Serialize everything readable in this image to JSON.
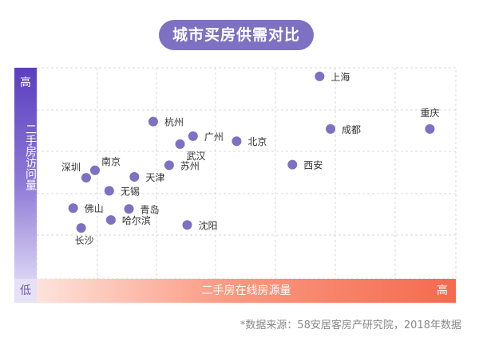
{
  "title": "城市买房供需对比",
  "axes": {
    "y_high": "高",
    "y_label": "二手房访问量",
    "y_low": "低",
    "x_label": "二手房在线房源量",
    "x_high": "高"
  },
  "source": "*数据来源：58安居客房产研究院，2018年数据",
  "colors": {
    "point": "#7e70c2",
    "grid": "#d8d8d8",
    "label": "#333333"
  },
  "chart_data": {
    "type": "scatter",
    "title": "城市买房供需对比",
    "xlabel": "二手房在线房源量",
    "ylabel": "二手房访问量",
    "xlim": [
      0,
      100
    ],
    "ylim": [
      0,
      100
    ],
    "grid": true,
    "points": [
      {
        "label": "上海",
        "x": 67.5,
        "y": 95.9,
        "label_pos": "right"
      },
      {
        "label": "重庆",
        "x": 93.8,
        "y": 71.0,
        "label_pos": "above"
      },
      {
        "label": "成都",
        "x": 70.1,
        "y": 71.0,
        "label_pos": "right"
      },
      {
        "label": "杭州",
        "x": 27.8,
        "y": 74.5,
        "label_pos": "right"
      },
      {
        "label": "广州",
        "x": 37.3,
        "y": 67.6,
        "label_pos": "right"
      },
      {
        "label": "武汉",
        "x": 34.2,
        "y": 63.8,
        "label_pos": "below-right"
      },
      {
        "label": "北京",
        "x": 47.7,
        "y": 65.2,
        "label_pos": "right"
      },
      {
        "label": "西安",
        "x": 61.0,
        "y": 54.1,
        "label_pos": "right"
      },
      {
        "label": "苏州",
        "x": 31.6,
        "y": 53.8,
        "label_pos": "right"
      },
      {
        "label": "南京",
        "x": 13.9,
        "y": 51.4,
        "label_pos": "above-right"
      },
      {
        "label": "深圳",
        "x": 11.8,
        "y": 47.9,
        "label_pos": "above-left"
      },
      {
        "label": "天津",
        "x": 23.3,
        "y": 48.3,
        "label_pos": "right"
      },
      {
        "label": "无锡",
        "x": 17.3,
        "y": 41.7,
        "label_pos": "right"
      },
      {
        "label": "佛山",
        "x": 8.7,
        "y": 33.5,
        "label_pos": "right"
      },
      {
        "label": "青岛",
        "x": 22.0,
        "y": 33.1,
        "label_pos": "right"
      },
      {
        "label": "哈尔滨",
        "x": 17.7,
        "y": 27.9,
        "label_pos": "right"
      },
      {
        "label": "沈阳",
        "x": 35.9,
        "y": 25.5,
        "label_pos": "right"
      },
      {
        "label": "长沙",
        "x": 10.6,
        "y": 24.1,
        "label_pos": "below"
      }
    ]
  }
}
